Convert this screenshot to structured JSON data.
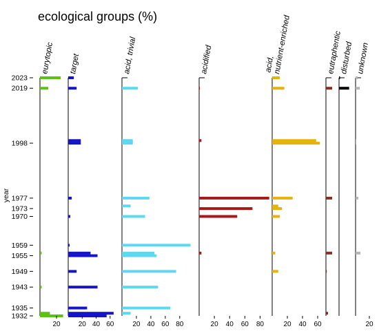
{
  "colors": {
    "axis": "#000000",
    "background": "#ffffff"
  },
  "chart_data": {
    "type": "bar",
    "orientation": "horizontal",
    "title": "ecological groups (%)",
    "ylabel": "year",
    "y_tick_labels": [
      "2023",
      "2019",
      "1998",
      "1977",
      "1973",
      "1970",
      "1959",
      "1955",
      "1949",
      "1943",
      "1935",
      "1932"
    ],
    "years": [
      2023,
      2019,
      1999,
      1998,
      1977,
      1974,
      1973,
      1970,
      1959,
      1956,
      1955,
      1949,
      1943,
      1935,
      1933,
      1932
    ],
    "panels": [
      {
        "label": "eurytopic",
        "color": "#5ec215",
        "ticks": [
          20
        ],
        "xlim": [
          0,
          30
        ],
        "values": [
          25,
          10,
          0,
          0,
          0,
          0,
          0,
          0,
          0,
          2,
          0,
          0,
          2,
          0,
          12,
          28
        ]
      },
      {
        "label": "target",
        "color": "#1515c8",
        "ticks": [
          20,
          40,
          60
        ],
        "xlim": [
          0,
          75
        ],
        "values": [
          8,
          12,
          18,
          18,
          5,
          0,
          0,
          3,
          2,
          32,
          42,
          12,
          42,
          27,
          65,
          55
        ]
      },
      {
        "label": "acid, trivial",
        "color": "#5cd8f0",
        "ticks": [
          20,
          40,
          60,
          80
        ],
        "xlim": [
          0,
          105
        ],
        "values": [
          0,
          22,
          15,
          15,
          38,
          12,
          0,
          32,
          95,
          45,
          48,
          75,
          50,
          67,
          12,
          0
        ]
      },
      {
        "label": "acidified",
        "color": "#a81818",
        "ticks": [
          20,
          40,
          60,
          80
        ],
        "xlim": [
          0,
          95
        ],
        "values": [
          0,
          1,
          3,
          0,
          92,
          0,
          70,
          50,
          0,
          3,
          0,
          0,
          0,
          0,
          0,
          0
        ]
      },
      {
        "label": "acid,\nnutrient-enriched",
        "color": "#e6b20c",
        "ticks": [
          20,
          40,
          60
        ],
        "xlim": [
          0,
          70
        ],
        "values": [
          10,
          16,
          58,
          63,
          27,
          8,
          13,
          10,
          0,
          4,
          0,
          8,
          0,
          0,
          0,
          0
        ]
      },
      {
        "label": "eutraphentic",
        "color": "#8b2a1e",
        "ticks": [],
        "xlim": [
          0,
          30
        ],
        "values": [
          0,
          15,
          0,
          0,
          15,
          0,
          0,
          0,
          0,
          15,
          0,
          2,
          0,
          0,
          5,
          0
        ]
      },
      {
        "label": "disturbed",
        "color": "#000000",
        "ticks": [],
        "xlim": [
          0,
          30
        ],
        "values": [
          2,
          20,
          0,
          0,
          0,
          0,
          0,
          0,
          0,
          0,
          0,
          0,
          0,
          0,
          0,
          0
        ]
      },
      {
        "label": "unknown",
        "color": "#b4b4b4",
        "ticks": [
          20
        ],
        "xlim": [
          0,
          30
        ],
        "values": [
          3,
          6,
          1,
          1,
          4,
          0,
          0,
          0,
          0,
          7,
          0,
          0,
          0,
          0,
          0,
          0
        ]
      }
    ]
  }
}
